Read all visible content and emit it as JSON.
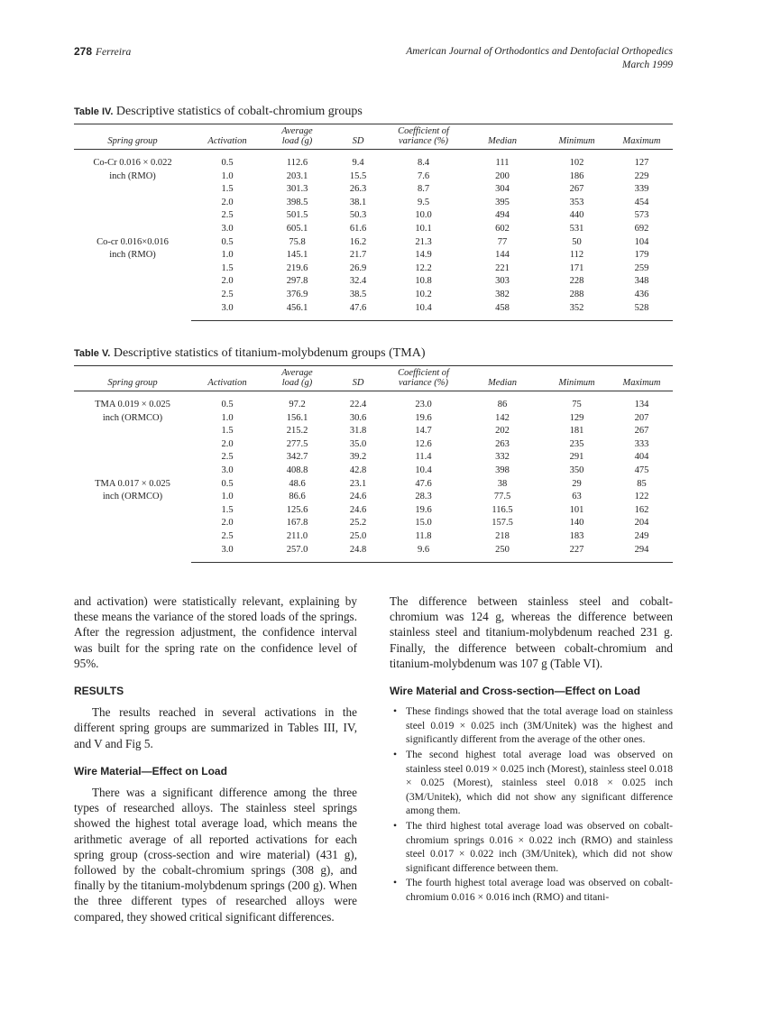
{
  "header": {
    "page_number": "278",
    "author": "Ferreira",
    "journal": "American Journal of Orthodontics and Dentofacial Orthopedics",
    "date": "March 1999"
  },
  "tables": [
    {
      "label": "Table IV.",
      "caption": "Descriptive statistics of cobalt-chromium groups",
      "columns": [
        "Spring group",
        "Activation",
        [
          "Average",
          "load (g)"
        ],
        "SD",
        [
          "Coefficient of",
          "variance (%)"
        ],
        "Median",
        "Minimum",
        "Maximum"
      ],
      "groups": [
        {
          "name": [
            "Co-Cr 0.016 × 0.022",
            "inch (RMO)"
          ],
          "rows": [
            [
              "0.5",
              "112.6",
              "9.4",
              "8.4",
              "111",
              "102",
              "127"
            ],
            [
              "1.0",
              "203.1",
              "15.5",
              "7.6",
              "200",
              "186",
              "229"
            ],
            [
              "1.5",
              "301.3",
              "26.3",
              "8.7",
              "304",
              "267",
              "339"
            ],
            [
              "2.0",
              "398.5",
              "38.1",
              "9.5",
              "395",
              "353",
              "454"
            ],
            [
              "2.5",
              "501.5",
              "50.3",
              "10.0",
              "494",
              "440",
              "573"
            ],
            [
              "3.0",
              "605.1",
              "61.6",
              "10.1",
              "602",
              "531",
              "692"
            ]
          ]
        },
        {
          "name": [
            "Co-cr 0.016×0.016",
            "inch (RMO)"
          ],
          "rows": [
            [
              "0.5",
              "75.8",
              "16.2",
              "21.3",
              "77",
              "50",
              "104"
            ],
            [
              "1.0",
              "145.1",
              "21.7",
              "14.9",
              "144",
              "112",
              "179"
            ],
            [
              "1.5",
              "219.6",
              "26.9",
              "12.2",
              "221",
              "171",
              "259"
            ],
            [
              "2.0",
              "297.8",
              "32.4",
              "10.8",
              "303",
              "228",
              "348"
            ],
            [
              "2.5",
              "376.9",
              "38.5",
              "10.2",
              "382",
              "288",
              "436"
            ],
            [
              "3.0",
              "456.1",
              "47.6",
              "10.4",
              "458",
              "352",
              "528"
            ]
          ]
        }
      ]
    },
    {
      "label": "Table V.",
      "caption": "Descriptive statistics of titanium-molybdenum groups (TMA)",
      "columns": [
        "Spring group",
        "Activation",
        [
          "Average",
          "load (g)"
        ],
        "SD",
        [
          "Coefficient of",
          "variance (%)"
        ],
        "Median",
        "Minimum",
        "Maximum"
      ],
      "groups": [
        {
          "name": [
            "TMA 0.019 × 0.025",
            "inch (ORMCO)"
          ],
          "rows": [
            [
              "0.5",
              "97.2",
              "22.4",
              "23.0",
              "86",
              "75",
              "134"
            ],
            [
              "1.0",
              "156.1",
              "30.6",
              "19.6",
              "142",
              "129",
              "207"
            ],
            [
              "1.5",
              "215.2",
              "31.8",
              "14.7",
              "202",
              "181",
              "267"
            ],
            [
              "2.0",
              "277.5",
              "35.0",
              "12.6",
              "263",
              "235",
              "333"
            ],
            [
              "2.5",
              "342.7",
              "39.2",
              "11.4",
              "332",
              "291",
              "404"
            ],
            [
              "3.0",
              "408.8",
              "42.8",
              "10.4",
              "398",
              "350",
              "475"
            ]
          ]
        },
        {
          "name": [
            "TMA 0.017 × 0.025",
            "inch (ORMCO)"
          ],
          "rows": [
            [
              "0.5",
              "48.6",
              "23.1",
              "47.6",
              "38",
              "29",
              "85"
            ],
            [
              "1.0",
              "86.6",
              "24.6",
              "28.3",
              "77.5",
              "63",
              "122"
            ],
            [
              "1.5",
              "125.6",
              "24.6",
              "19.6",
              "116.5",
              "101",
              "162"
            ],
            [
              "2.0",
              "167.8",
              "25.2",
              "15.0",
              "157.5",
              "140",
              "204"
            ],
            [
              "2.5",
              "211.0",
              "25.0",
              "11.8",
              "218",
              "183",
              "249"
            ],
            [
              "3.0",
              "257.0",
              "24.8",
              "9.6",
              "250",
              "227",
              "294"
            ]
          ]
        }
      ]
    }
  ],
  "body": {
    "left": [
      {
        "kind": "p",
        "noindent": true,
        "text": "and activation) were statistically relevant, explaining by these means the variance of the stored loads of the springs. After the regression adjustment, the confidence interval was built for the spring rate on the confidence level of 95%."
      },
      {
        "kind": "h1",
        "text": "RESULTS"
      },
      {
        "kind": "p",
        "text": "The results reached in several activations in the different spring groups are summarized in Tables III, IV, and V and Fig 5."
      },
      {
        "kind": "h2",
        "text": "Wire Material—Effect on Load"
      },
      {
        "kind": "p",
        "text": "There was a significant difference among the three types of researched alloys. The stainless steel springs showed the highest total average load, which means the arithmetic average of all reported activations for each spring group (cross-section and wire material) (431 g), followed by the cobalt-chromium springs (308 g), and finally by the titanium-molybdenum springs (200 g). When the three different types of researched alloys were compared, they showed critical significant differences."
      }
    ],
    "right": [
      {
        "kind": "p",
        "noindent": true,
        "text": "The difference between stainless steel and cobalt-chromium was 124 g, whereas the difference between stainless steel and titanium-molybdenum reached 231 g. Finally, the difference between cobalt-chromium and titanium-molybdenum was 107 g (Table VI)."
      },
      {
        "kind": "h2",
        "text": "Wire Material and Cross-section—Effect on Load"
      },
      {
        "kind": "li",
        "text": "These findings showed that the total average load on stainless steel 0.019 × 0.025 inch (3M/Unitek) was the highest and significantly different from the average of the other ones."
      },
      {
        "kind": "li",
        "text": "The second highest total average load was observed on stainless steel 0.019 × 0.025 inch (Morest), stainless steel 0.018 × 0.025 (Morest), stainless steel 0.018 × 0.025 inch (3M/Unitek), which did not show any significant difference among them."
      },
      {
        "kind": "li",
        "text": "The third highest total average load was observed on cobalt-chromium springs 0.016 × 0.022 inch (RMO) and stainless steel 0.017 × 0.022 inch (3M/Unitek), which did not show significant difference between them."
      },
      {
        "kind": "li",
        "text": "The fourth highest total average load was observed on cobalt-chromium 0.016 × 0.016 inch (RMO) and titani-"
      }
    ]
  }
}
